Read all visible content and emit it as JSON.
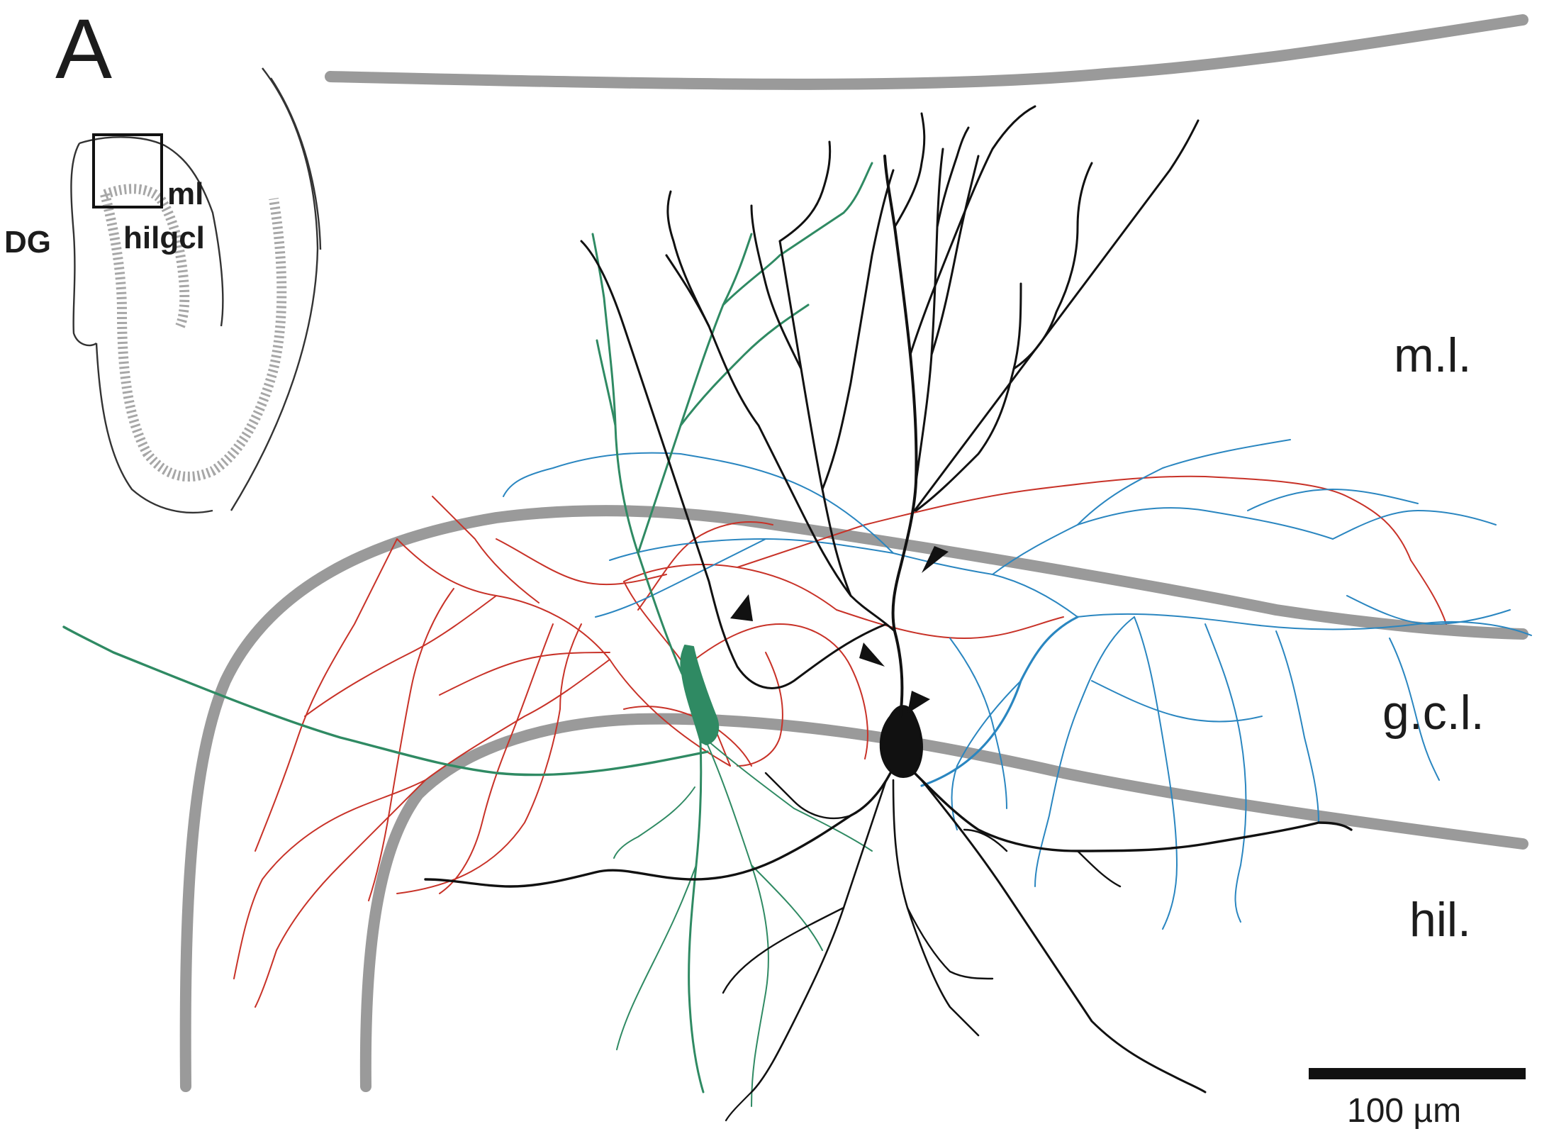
{
  "panel_label": "A",
  "inset": {
    "labels": {
      "dg": "DG",
      "ml": "ml",
      "hil_gcl": "hilgcl"
    }
  },
  "layers": {
    "molecular": "m.l.",
    "granule_cell": "g.c.l.",
    "hilus": "hil."
  },
  "scale_bar": {
    "label": "100 µm"
  },
  "colors": {
    "layer_boundary": "#9a9a9a",
    "black_cell": "#111111",
    "green_cell": "#2f8a63",
    "red_axon": "#c83228",
    "blue_axon": "#2a86c0"
  }
}
